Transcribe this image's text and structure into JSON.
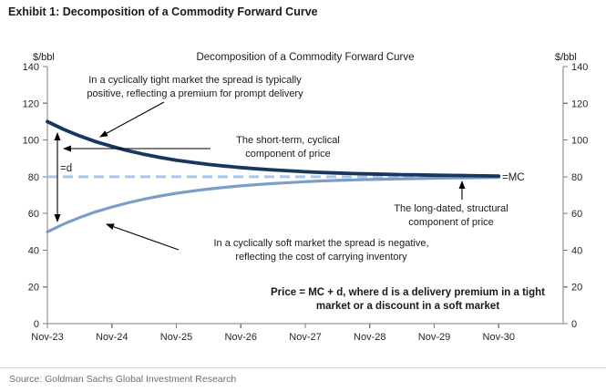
{
  "header": {
    "title": "Exhibit 1: Decomposition of a Commodity Forward Curve"
  },
  "source": {
    "text": "Source: Goldman Sachs Global Investment Research"
  },
  "chart_data": {
    "type": "line",
    "title": "Decomposition of a Commodity Forward Curve",
    "y_axis_label_left": "$/bbl",
    "y_axis_label_right": "$/bbl",
    "ylim": [
      0,
      140
    ],
    "y_ticks": [
      0,
      20,
      40,
      60,
      80,
      100,
      120,
      140
    ],
    "x_tick_labels": [
      "Nov-23",
      "Nov-24",
      "Nov-25",
      "Nov-26",
      "Nov-27",
      "Nov-28",
      "Nov-29",
      "Nov-30"
    ],
    "grid": "off",
    "legend": "none",
    "x_years": [
      0,
      0.25,
      0.5,
      0.75,
      1,
      1.25,
      1.5,
      1.75,
      2,
      2.25,
      2.5,
      2.75,
      3,
      3.25,
      3.5,
      3.75,
      4,
      4.25,
      4.5,
      4.75,
      5,
      5.25,
      5.5,
      5.75,
      6,
      6.25,
      6.5,
      6.75,
      7
    ],
    "series": [
      {
        "name": "tight-market-forward-curve",
        "description": "Forward curve in a cyclically tight market (MC + d), converges to MC",
        "color": "#17375E",
        "style": "solid",
        "values": [
          110.0,
          105.8,
          102.2,
          99.1,
          96.5,
          94.2,
          92.2,
          90.5,
          89.0,
          87.8,
          86.7,
          85.8,
          85.0,
          84.3,
          83.7,
          83.2,
          82.7,
          82.3,
          82.0,
          81.7,
          81.5,
          81.3,
          81.1,
          81.0,
          80.8,
          80.7,
          80.6,
          80.5,
          80.4
        ]
      },
      {
        "name": "soft-market-forward-curve",
        "description": "Forward curve in a cyclically soft market (MC - d), converges to MC",
        "color": "#7D9DC9",
        "style": "solid",
        "values": [
          50.0,
          54.2,
          57.8,
          60.9,
          63.5,
          65.8,
          67.8,
          69.5,
          71.0,
          72.2,
          73.3,
          74.2,
          75.0,
          75.7,
          76.3,
          76.8,
          77.3,
          77.7,
          78.0,
          78.3,
          78.5,
          78.7,
          78.9,
          79.0,
          79.2,
          79.3,
          79.4,
          79.5,
          79.6
        ]
      }
    ],
    "mc_line": {
      "name": "long-dated-structural-level",
      "value": 80,
      "color": "#A9C8E9",
      "style": "dashed"
    }
  },
  "annotations": {
    "tight_market": {
      "line1": "In a cyclically tight market the spread is typically",
      "line2": "positive, reflecting a premium for prompt delivery"
    },
    "short_term": {
      "line1": "The short-term, cyclical",
      "line2": "component of price"
    },
    "spread_label": "=d",
    "mc_label": "=MC",
    "long_dated": {
      "line1": "The long-dated, structural",
      "line2": "component of price"
    },
    "soft_market": {
      "line1": "In a cyclically soft market the spread is negative,",
      "line2": "reflecting the cost of carrying inventory"
    },
    "formula": {
      "line1": "Price = MC + d, where d is a delivery premium in a tight",
      "line2": "market or a discount in a soft market"
    }
  }
}
